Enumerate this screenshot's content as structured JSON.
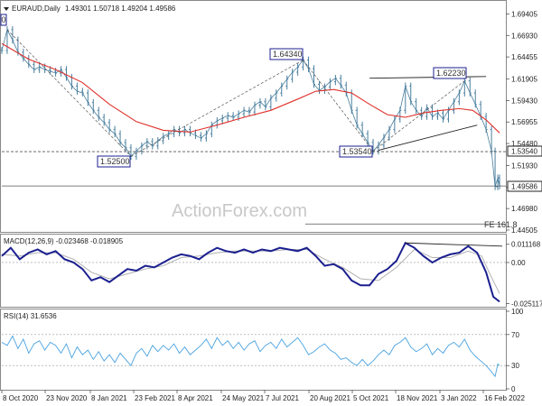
{
  "header": {
    "symbol_title": "EURAUD,Daily",
    "ohlc": "1.49301 1.50718 1.49204 1.49586"
  },
  "watermark": "ActionForex.com",
  "panels": {
    "macd_title": "MACD(12,26,9) -0.023468 -0.018905",
    "rsi_title": "RSI(14) 31.6536"
  },
  "annotations": {
    "high1": "1.64340",
    "high2": "1.62230",
    "low1": "1.52500",
    "low2": "1.53540",
    "fe": "FE 161.8",
    "left_tag": "0"
  },
  "price_axis": {
    "ticks": [
      "1.69405",
      "1.66930",
      "1.64455",
      "1.61905",
      "1.59430",
      "1.56955",
      "1.54480",
      "1.51930",
      "1.49455",
      "1.46980",
      "1.44505"
    ],
    "current": "1.49586",
    "support": "1.53540"
  },
  "macd_axis": {
    "ticks": [
      "0.011168",
      "0.00",
      "-0.025117"
    ]
  },
  "rsi_axis": {
    "ticks": [
      "100",
      "70",
      "30",
      "0"
    ]
  },
  "time_axis": {
    "labels": [
      "8 Oct 2020",
      "23 Nov 2020",
      "8 Jan 2021",
      "23 Feb 2021",
      "8 Apr 2021",
      "24 May 2021",
      "7 Jul 2021",
      "20 Aug 2021",
      "5 Oct 2021",
      "18 Nov 2021",
      "3 Jan 2022",
      "16 Feb 2022"
    ]
  },
  "colors": {
    "candles": "#4a7f9e",
    "ma": "#e0302a",
    "macd": "#1b1f8f",
    "signal": "#b0b0b0",
    "rsi": "#4aa3e0",
    "trend": "#222222",
    "label_border": "#1b1f8f"
  },
  "chart_data": {
    "type": "line",
    "title": "EURAUD,Daily",
    "price": {
      "points": [
        [
          0,
          1.652
        ],
        [
          6,
          1.676
        ],
        [
          12,
          1.664
        ],
        [
          18,
          1.65
        ],
        [
          24,
          1.643
        ],
        [
          30,
          1.636
        ],
        [
          36,
          1.63
        ],
        [
          42,
          1.633
        ],
        [
          48,
          1.63
        ],
        [
          54,
          1.628
        ],
        [
          60,
          1.626
        ],
        [
          66,
          1.63
        ],
        [
          72,
          1.621
        ],
        [
          78,
          1.611
        ],
        [
          84,
          1.605
        ],
        [
          90,
          1.603
        ],
        [
          96,
          1.592
        ],
        [
          102,
          1.583
        ],
        [
          108,
          1.575
        ],
        [
          114,
          1.569
        ],
        [
          120,
          1.561
        ],
        [
          126,
          1.556
        ],
        [
          132,
          1.546
        ],
        [
          138,
          1.54
        ],
        [
          144,
          1.53
        ],
        [
          150,
          1.536
        ],
        [
          156,
          1.542
        ],
        [
          162,
          1.547
        ],
        [
          168,
          1.542
        ],
        [
          174,
          1.548
        ],
        [
          180,
          1.553
        ],
        [
          186,
          1.556
        ],
        [
          192,
          1.561
        ],
        [
          198,
          1.557
        ],
        [
          204,
          1.561
        ],
        [
          210,
          1.557
        ],
        [
          216,
          1.554
        ],
        [
          222,
          1.551
        ],
        [
          228,
          1.556
        ],
        [
          234,
          1.566
        ],
        [
          240,
          1.571
        ],
        [
          246,
          1.574
        ],
        [
          252,
          1.577
        ],
        [
          258,
          1.575
        ],
        [
          264,
          1.579
        ],
        [
          270,
          1.583
        ],
        [
          276,
          1.581
        ],
        [
          282,
          1.589
        ],
        [
          288,
          1.593
        ],
        [
          294,
          1.587
        ],
        [
          300,
          1.597
        ],
        [
          306,
          1.603
        ],
        [
          312,
          1.611
        ],
        [
          318,
          1.619
        ],
        [
          324,
          1.627
        ],
        [
          330,
          1.633
        ],
        [
          336,
          1.641
        ],
        [
          342,
          1.631
        ],
        [
          348,
          1.613
        ],
        [
          354,
          1.606
        ],
        [
          360,
          1.61
        ],
        [
          366,
          1.616
        ],
        [
          372,
          1.62
        ],
        [
          378,
          1.612
        ],
        [
          384,
          1.603
        ],
        [
          390,
          1.583
        ],
        [
          396,
          1.566
        ],
        [
          402,
          1.556
        ],
        [
          408,
          1.546
        ],
        [
          414,
          1.536
        ],
        [
          420,
          1.543
        ],
        [
          426,
          1.552
        ],
        [
          432,
          1.561
        ],
        [
          438,
          1.573
        ],
        [
          444,
          1.583
        ],
        [
          450,
          1.611
        ],
        [
          456,
          1.593
        ],
        [
          462,
          1.583
        ],
        [
          468,
          1.576
        ],
        [
          474,
          1.586
        ],
        [
          480,
          1.576
        ],
        [
          486,
          1.58
        ],
        [
          492,
          1.573
        ],
        [
          498,
          1.583
        ],
        [
          504,
          1.593
        ],
        [
          510,
          1.603
        ],
        [
          516,
          1.617
        ],
        [
          522,
          1.603
        ],
        [
          528,
          1.59
        ],
        [
          534,
          1.576
        ],
        [
          540,
          1.561
        ],
        [
          546,
          1.536
        ],
        [
          550,
          1.495
        ],
        [
          553,
          1.505
        ],
        [
          555,
          1.496
        ]
      ]
    },
    "moving_average": {
      "points": [
        [
          0,
          1.66
        ],
        [
          30,
          1.642
        ],
        [
          60,
          1.63
        ],
        [
          90,
          1.615
        ],
        [
          120,
          1.59
        ],
        [
          150,
          1.57
        ],
        [
          180,
          1.56
        ],
        [
          210,
          1.558
        ],
        [
          240,
          1.566
        ],
        [
          270,
          1.575
        ],
        [
          300,
          1.583
        ],
        [
          330,
          1.596
        ],
        [
          350,
          1.605
        ],
        [
          370,
          1.607
        ],
        [
          390,
          1.603
        ],
        [
          410,
          1.59
        ],
        [
          430,
          1.578
        ],
        [
          450,
          1.575
        ],
        [
          470,
          1.58
        ],
        [
          490,
          1.583
        ],
        [
          510,
          1.585
        ],
        [
          525,
          1.583
        ],
        [
          540,
          1.572
        ],
        [
          555,
          1.557
        ]
      ]
    },
    "macd_line": {
      "points": [
        [
          0,
          0.004
        ],
        [
          10,
          0.009
        ],
        [
          20,
          0.002
        ],
        [
          30,
          0.006
        ],
        [
          40,
          0.008
        ],
        [
          50,
          0.005
        ],
        [
          60,
          0.007
        ],
        [
          70,
          0.002
        ],
        [
          80,
          0.0
        ],
        [
          90,
          -0.004
        ],
        [
          100,
          -0.011
        ],
        [
          110,
          -0.009
        ],
        [
          120,
          -0.012
        ],
        [
          130,
          -0.008
        ],
        [
          140,
          -0.004
        ],
        [
          150,
          -0.005
        ],
        [
          160,
          -0.002
        ],
        [
          170,
          -0.003
        ],
        [
          180,
          0.0
        ],
        [
          190,
          0.003
        ],
        [
          200,
          0.005
        ],
        [
          210,
          0.004
        ],
        [
          220,
          0.002
        ],
        [
          230,
          0.006
        ],
        [
          240,
          0.009
        ],
        [
          250,
          0.007
        ],
        [
          260,
          0.006
        ],
        [
          270,
          0.008
        ],
        [
          280,
          0.006
        ],
        [
          290,
          0.008
        ],
        [
          300,
          0.007
        ],
        [
          310,
          0.009
        ],
        [
          320,
          0.008
        ],
        [
          330,
          0.007
        ],
        [
          340,
          0.009
        ],
        [
          350,
          0.004
        ],
        [
          360,
          -0.002
        ],
        [
          370,
          -0.001
        ],
        [
          380,
          -0.004
        ],
        [
          390,
          -0.011
        ],
        [
          400,
          -0.014
        ],
        [
          410,
          -0.014
        ],
        [
          420,
          -0.007
        ],
        [
          430,
          -0.004
        ],
        [
          440,
          0.001
        ],
        [
          450,
          0.012
        ],
        [
          460,
          0.009
        ],
        [
          470,
          0.004
        ],
        [
          480,
          0.0
        ],
        [
          490,
          0.003
        ],
        [
          500,
          0.005
        ],
        [
          510,
          0.006
        ],
        [
          520,
          0.01
        ],
        [
          530,
          0.006
        ],
        [
          540,
          -0.006
        ],
        [
          548,
          -0.021
        ],
        [
          555,
          -0.024
        ]
      ]
    },
    "macd_signal": {
      "points": [
        [
          0,
          0.005
        ],
        [
          20,
          0.004
        ],
        [
          40,
          0.006
        ],
        [
          60,
          0.006
        ],
        [
          80,
          0.002
        ],
        [
          100,
          -0.006
        ],
        [
          120,
          -0.01
        ],
        [
          140,
          -0.007
        ],
        [
          160,
          -0.004
        ],
        [
          180,
          -0.002
        ],
        [
          200,
          0.003
        ],
        [
          220,
          0.004
        ],
        [
          240,
          0.006
        ],
        [
          260,
          0.007
        ],
        [
          280,
          0.007
        ],
        [
          300,
          0.007
        ],
        [
          320,
          0.008
        ],
        [
          340,
          0.008
        ],
        [
          360,
          0.002
        ],
        [
          380,
          -0.003
        ],
        [
          400,
          -0.01
        ],
        [
          420,
          -0.011
        ],
        [
          440,
          -0.003
        ],
        [
          460,
          0.008
        ],
        [
          480,
          0.003
        ],
        [
          500,
          0.003
        ],
        [
          520,
          0.007
        ],
        [
          535,
          0.004
        ],
        [
          545,
          -0.008
        ],
        [
          555,
          -0.019
        ]
      ]
    },
    "rsi": {
      "points": [
        [
          0,
          60
        ],
        [
          6,
          56
        ],
        [
          12,
          68
        ],
        [
          18,
          52
        ],
        [
          24,
          64
        ],
        [
          30,
          46
        ],
        [
          36,
          58
        ],
        [
          42,
          62
        ],
        [
          48,
          50
        ],
        [
          54,
          60
        ],
        [
          60,
          56
        ],
        [
          66,
          46
        ],
        [
          72,
          58
        ],
        [
          78,
          40
        ],
        [
          84,
          54
        ],
        [
          90,
          44
        ],
        [
          96,
          50
        ],
        [
          102,
          38
        ],
        [
          108,
          48
        ],
        [
          114,
          36
        ],
        [
          120,
          44
        ],
        [
          126,
          34
        ],
        [
          132,
          46
        ],
        [
          138,
          38
        ],
        [
          144,
          30
        ],
        [
          150,
          46
        ],
        [
          156,
          52
        ],
        [
          162,
          42
        ],
        [
          168,
          56
        ],
        [
          174,
          48
        ],
        [
          180,
          56
        ],
        [
          186,
          50
        ],
        [
          192,
          58
        ],
        [
          198,
          46
        ],
        [
          204,
          54
        ],
        [
          210,
          44
        ],
        [
          216,
          50
        ],
        [
          222,
          56
        ],
        [
          228,
          64
        ],
        [
          234,
          52
        ],
        [
          240,
          66
        ],
        [
          246,
          56
        ],
        [
          252,
          62
        ],
        [
          258,
          52
        ],
        [
          264,
          60
        ],
        [
          270,
          50
        ],
        [
          276,
          58
        ],
        [
          282,
          62
        ],
        [
          288,
          48
        ],
        [
          294,
          56
        ],
        [
          300,
          60
        ],
        [
          306,
          52
        ],
        [
          312,
          64
        ],
        [
          318,
          54
        ],
        [
          324,
          60
        ],
        [
          330,
          66
        ],
        [
          336,
          56
        ],
        [
          342,
          44
        ],
        [
          348,
          48
        ],
        [
          354,
          54
        ],
        [
          360,
          58
        ],
        [
          366,
          50
        ],
        [
          372,
          46
        ],
        [
          378,
          38
        ],
        [
          384,
          40
        ],
        [
          390,
          34
        ],
        [
          396,
          30
        ],
        [
          402,
          38
        ],
        [
          408,
          30
        ],
        [
          414,
          36
        ],
        [
          420,
          44
        ],
        [
          426,
          50
        ],
        [
          432,
          44
        ],
        [
          438,
          56
        ],
        [
          444,
          60
        ],
        [
          450,
          66
        ],
        [
          456,
          54
        ],
        [
          462,
          48
        ],
        [
          468,
          52
        ],
        [
          474,
          58
        ],
        [
          480,
          44
        ],
        [
          486,
          52
        ],
        [
          492,
          46
        ],
        [
          498,
          56
        ],
        [
          504,
          60
        ],
        [
          510,
          54
        ],
        [
          516,
          64
        ],
        [
          522,
          50
        ],
        [
          528,
          42
        ],
        [
          534,
          36
        ],
        [
          540,
          30
        ],
        [
          546,
          22
        ],
        [
          550,
          16
        ],
        [
          553,
          32
        ],
        [
          555,
          30
        ]
      ]
    },
    "trend_lines": [
      {
        "from": [
          6,
          1.676
        ],
        "to": [
          144,
          1.53
        ]
      },
      {
        "from": [
          144,
          1.53
        ],
        "to": [
          336,
          1.641
        ]
      },
      {
        "from": [
          336,
          1.641
        ],
        "to": [
          414,
          1.536
        ]
      },
      {
        "from": [
          414,
          1.536
        ],
        "to": [
          516,
          1.617
        ]
      },
      {
        "from": [
          410,
          1.62
        ],
        "to": [
          540,
          1.622
        ]
      },
      {
        "from": [
          420,
          1.537
        ],
        "to": [
          530,
          1.566
        ]
      }
    ],
    "horizontal_lines": [
      {
        "value": 1.5354,
        "style": "dashed"
      },
      {
        "value": 1.49586,
        "style": "solid"
      },
      {
        "value": 1.452,
        "style": "solid"
      }
    ],
    "x_range": [
      0,
      560
    ],
    "ylim": [
      1.445,
      1.705
    ],
    "macd_ylim": [
      -0.026,
      0.016
    ],
    "rsi_ylim": [
      0,
      100
    ],
    "rsi_levels": [
      70,
      30
    ],
    "xlabel": "",
    "ylabel": ""
  }
}
